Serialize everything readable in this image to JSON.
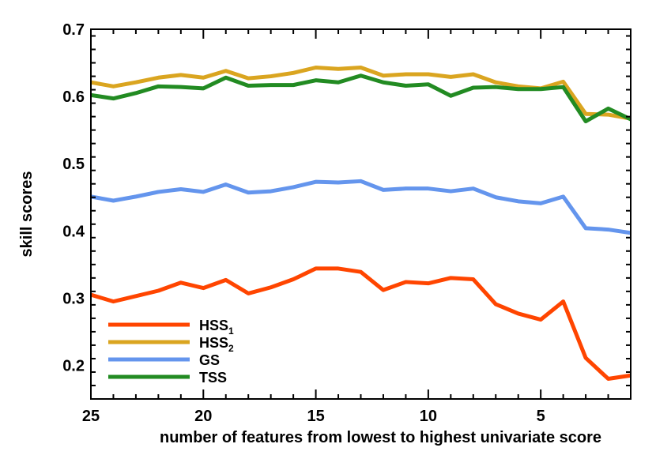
{
  "chart_data": {
    "type": "line",
    "title": "",
    "xlabel": "number of features from lowest to highest univariate score",
    "ylabel": "skill scores",
    "xlim": [
      25,
      1
    ],
    "ylim": [
      0.15,
      0.7
    ],
    "x_ticks": [
      25,
      20,
      15,
      10,
      5
    ],
    "y_ticks": [
      0.2,
      0.3,
      0.4,
      0.5,
      0.6,
      0.7
    ],
    "grid": false,
    "legend": {
      "placement": "bottom-left"
    },
    "x": [
      25,
      24,
      23,
      22,
      21,
      20,
      19,
      18,
      17,
      16,
      15,
      14,
      13,
      12,
      11,
      10,
      9,
      8,
      7,
      6,
      5,
      4,
      3,
      2,
      1
    ],
    "series": [
      {
        "name": "HSS",
        "name_sub": "1",
        "color": "#ff4500",
        "values": [
          0.305,
          0.295,
          0.303,
          0.311,
          0.323,
          0.315,
          0.327,
          0.307,
          0.316,
          0.328,
          0.344,
          0.344,
          0.339,
          0.312,
          0.324,
          0.322,
          0.33,
          0.328,
          0.291,
          0.277,
          0.268,
          0.295,
          0.211,
          0.18,
          0.185
        ]
      },
      {
        "name": "HSS",
        "name_sub": "2",
        "color": "#daa520",
        "values": [
          0.621,
          0.615,
          0.621,
          0.628,
          0.632,
          0.628,
          0.638,
          0.627,
          0.63,
          0.635,
          0.643,
          0.641,
          0.643,
          0.631,
          0.633,
          0.633,
          0.629,
          0.633,
          0.621,
          0.615,
          0.612,
          0.622,
          0.574,
          0.573,
          0.567
        ]
      },
      {
        "name": "GS",
        "name_sub": "",
        "color": "#6495ed",
        "values": [
          0.451,
          0.445,
          0.451,
          0.458,
          0.462,
          0.458,
          0.469,
          0.457,
          0.459,
          0.465,
          0.473,
          0.472,
          0.474,
          0.461,
          0.463,
          0.463,
          0.459,
          0.463,
          0.45,
          0.444,
          0.441,
          0.451,
          0.404,
          0.402,
          0.397
        ]
      },
      {
        "name": "TSS",
        "name_sub": "",
        "color": "#228b22",
        "values": [
          0.602,
          0.597,
          0.605,
          0.615,
          0.614,
          0.612,
          0.628,
          0.616,
          0.617,
          0.617,
          0.624,
          0.621,
          0.631,
          0.621,
          0.616,
          0.618,
          0.601,
          0.613,
          0.614,
          0.611,
          0.611,
          0.614,
          0.563,
          0.582,
          0.566
        ]
      }
    ]
  }
}
